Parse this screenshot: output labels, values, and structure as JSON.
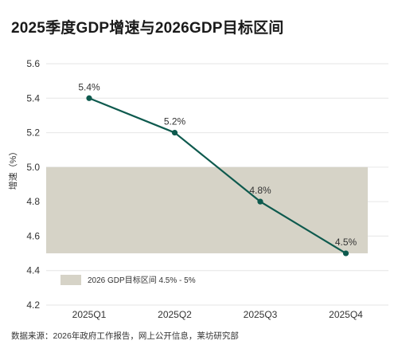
{
  "title": "2025季度GDP增速与2026GDP目标区间",
  "source": "数据来源：2026年政府工作报告，网上公开信息，莱坊研究部",
  "colors": {
    "line": "#0e5a4e",
    "band": "#d6d3c7",
    "grid": "#e6e6e6"
  },
  "chart_data": {
    "type": "line",
    "categories": [
      "2025Q1",
      "2025Q2",
      "2025Q3",
      "2025Q4"
    ],
    "series": [
      {
        "values": [
          5.4,
          5.2,
          4.8,
          4.5
        ]
      }
    ],
    "data_labels": [
      "5.4%",
      "5.2%",
      "4.8%",
      "4.5%"
    ],
    "ylabel": "增速（%）",
    "ylim": [
      4.2,
      5.6
    ],
    "yticks": [
      4.2,
      4.4,
      4.6,
      4.8,
      5.0,
      5.2,
      5.4,
      5.6
    ],
    "ytick_labels": [
      "4.2",
      "4.4",
      "4.6",
      "4.8",
      "5.0",
      "5.2",
      "5.4",
      "5.6"
    ],
    "band": {
      "low": 4.5,
      "high": 5.0,
      "label": "2026 GDP目标区间 4.5% - 5%"
    },
    "grid": true,
    "legend_position": "bottom-left"
  }
}
